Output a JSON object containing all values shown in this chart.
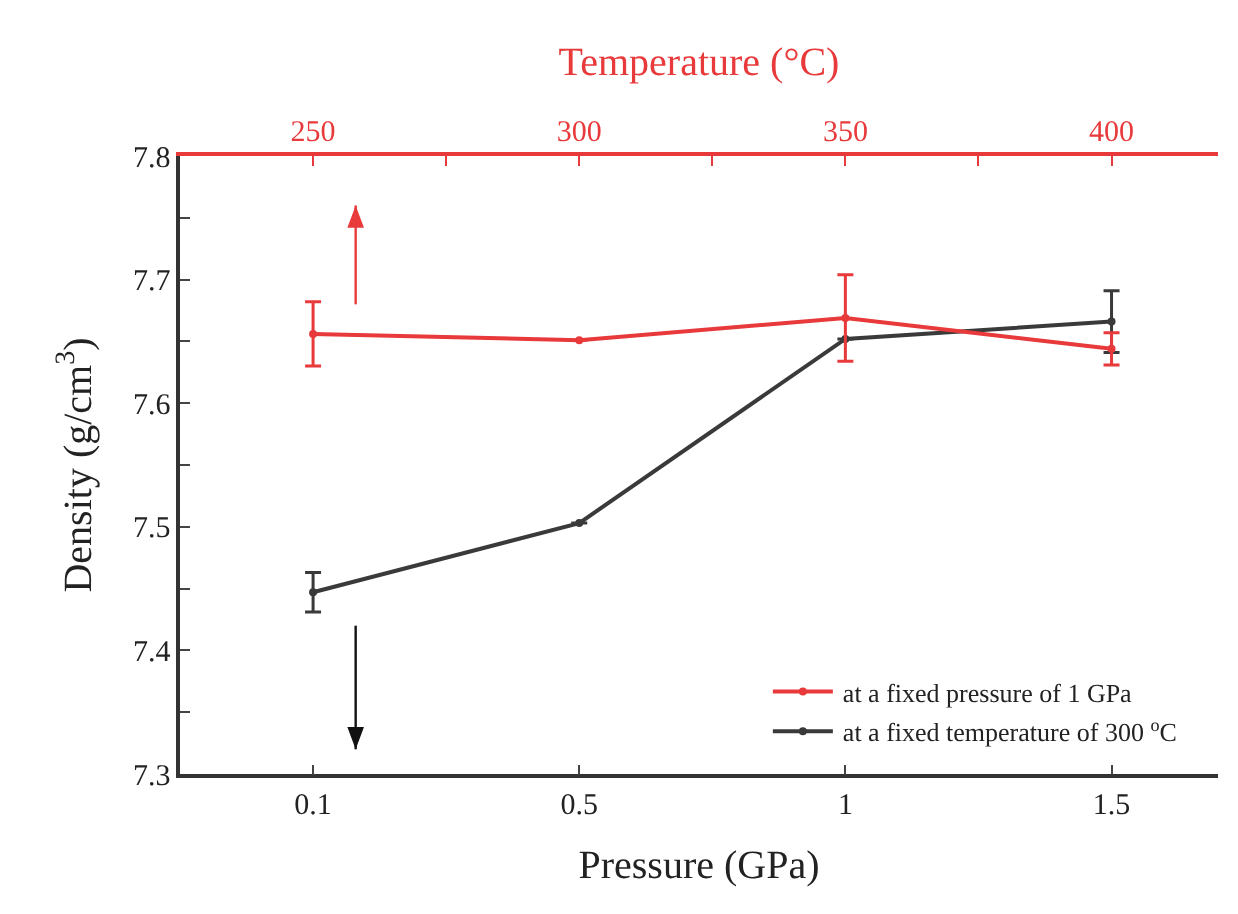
{
  "chart_data": {
    "type": "line",
    "xlabel": "Pressure (GPa)",
    "x2label": "Temperature (°C)",
    "ylabel": "Density (g/cm$^{3}$)",
    "categories": [
      "0.1",
      "0.5",
      "1",
      "1.5"
    ],
    "x2lim": [
      225,
      420
    ],
    "x2ticks": [
      250,
      {
        "value": 275,
        "label": null
      },
      300,
      {
        "value": 325,
        "label": null
      },
      350,
      {
        "value": 375,
        "label": null
      },
      400
    ],
    "ylim": [
      7.3,
      7.8
    ],
    "yticks": [
      7.3,
      {
        "value": 7.35,
        "label": null
      },
      7.4,
      {
        "value": 7.45,
        "label": null
      },
      7.5,
      {
        "value": 7.55,
        "label": null
      },
      7.6,
      {
        "value": 7.65,
        "label": null
      },
      7.7,
      {
        "value": 7.75,
        "label": null
      },
      7.8
    ],
    "series": [
      {
        "name": "at a fixed pressure of 1 GPa",
        "color": "#e8393b",
        "axis": "x2",
        "x": [
          250,
          300,
          350,
          400
        ],
        "values": [
          7.656,
          7.651,
          7.669,
          7.644
        ],
        "errors": [
          0.026,
          null,
          0.035,
          0.013
        ]
      },
      {
        "name": "at a fixed temperature of 300 $^{o}$C",
        "color": "#3a3a3a",
        "values": [
          7.447,
          7.503,
          7.652,
          7.666
        ],
        "errors": [
          0.016,
          null,
          null,
          0.025
        ]
      }
    ],
    "legend": "bottom right",
    "marker": "circle",
    "line_style": "solid"
  }
}
